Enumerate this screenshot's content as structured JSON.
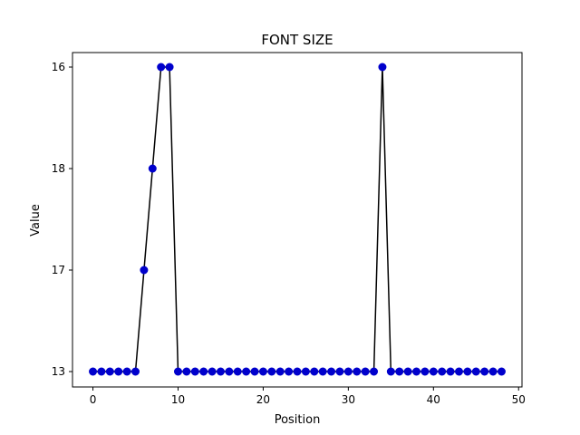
{
  "chart_data": {
    "type": "line",
    "title": "FONT SIZE",
    "xlabel": "Position",
    "ylabel": "Value",
    "x_ticks": [
      0,
      10,
      20,
      30,
      40,
      50
    ],
    "xlim": [
      -2.4,
      50.4
    ],
    "y_categories": [
      "13",
      "17",
      "18",
      "16"
    ],
    "series": [
      {
        "name": "Value",
        "line_color": "#000000",
        "marker_color": "#0000cc",
        "x": [
          0,
          1,
          2,
          3,
          4,
          5,
          6,
          7,
          8,
          9,
          10,
          11,
          12,
          13,
          14,
          15,
          16,
          17,
          18,
          19,
          20,
          21,
          22,
          23,
          24,
          25,
          26,
          27,
          28,
          29,
          30,
          31,
          32,
          33,
          34,
          35,
          36,
          37,
          38,
          39,
          40,
          41,
          42,
          43,
          44,
          45,
          46,
          47,
          48
        ],
        "values": [
          "13",
          "13",
          "13",
          "13",
          "13",
          "13",
          "17",
          "18",
          "16",
          "16",
          "13",
          "13",
          "13",
          "13",
          "13",
          "13",
          "13",
          "13",
          "13",
          "13",
          "13",
          "13",
          "13",
          "13",
          "13",
          "13",
          "13",
          "13",
          "13",
          "13",
          "13",
          "13",
          "13",
          "13",
          "16",
          "13",
          "13",
          "13",
          "13",
          "13",
          "13",
          "13",
          "13",
          "13",
          "13",
          "13",
          "13",
          "13",
          "13"
        ]
      }
    ]
  }
}
